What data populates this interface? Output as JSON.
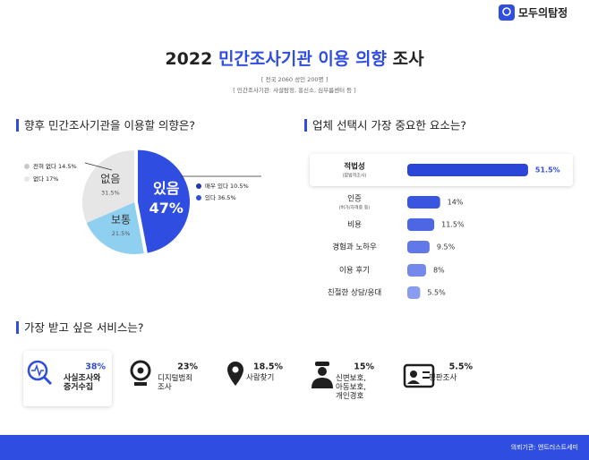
{
  "logo": "모두의탐정",
  "header": {
    "title_prefix": "2022",
    "title_highlight": "민간조사기관 이용 의향",
    "title_suffix": "조사",
    "subtitle_lines": [
      "[ 전국 2060 성인 200명 ]",
      "[ 민간조사기관: 사설탐정, 흥신소, 심부름센터 등 ]"
    ]
  },
  "chart_data": [
    {
      "type": "pie",
      "title": "향후 민간조사기관을 이용할 의향은?",
      "categories": [
        "있음",
        "보통",
        "없음"
      ],
      "values": [
        47,
        21.5,
        31.5
      ],
      "value_labels": [
        "47%",
        "21.5%",
        "31.5%"
      ],
      "colors": [
        "#2f4de0",
        "#8fd0f0",
        "#e6e6e6"
      ],
      "breakdown": [
        {
          "name": "매우 있다",
          "value": 10.5,
          "value_label": "10.5%",
          "color": "#2236b0"
        },
        {
          "name": "있다",
          "value": 36.5,
          "value_label": "36.5%",
          "color": "#2f4de0"
        },
        {
          "name": "전혀 없다",
          "value": 14.5,
          "value_label": "14.5%",
          "color": "#c8c8c8"
        },
        {
          "name": "없다",
          "value": 17,
          "value_label": "17%",
          "color": "#e6e6e6"
        }
      ]
    },
    {
      "type": "bar",
      "title": "업체 선택시 가장 중요한 요소는?",
      "categories": [
        "적법성",
        "인증",
        "비용",
        "경험과 노하우",
        "이용 후기",
        "친절한 상담/응대"
      ],
      "sublabels": [
        "(합법적조사)",
        "(허가/자격증 등)",
        null,
        null,
        null,
        null
      ],
      "values": [
        51.5,
        14,
        11.5,
        9.5,
        8,
        5.5
      ],
      "value_labels": [
        "51.5%",
        "14%",
        "11.5%",
        "9.5%",
        "8%",
        "5.5%"
      ],
      "colors": [
        "#2a46d8",
        "#3a56e0",
        "#4d66e4",
        "#6078e8",
        "#7589ec",
        "#8a9cf0"
      ]
    }
  ],
  "services": {
    "title": "가장 받고 싶은 서비스는?",
    "items": [
      {
        "label": "사실조사와 증거수집",
        "value": 38,
        "value_label": "38%"
      },
      {
        "label": "디지털범죄 조사",
        "value": 23,
        "value_label": "23%"
      },
      {
        "label": "사람찾기",
        "value": 18.5,
        "value_label": "18.5%"
      },
      {
        "label": "신변보호, 아동보호, 개인경호",
        "value": 15,
        "value_label": "15%"
      },
      {
        "label": "평판조사",
        "value": 5.5,
        "value_label": "5.5%"
      }
    ]
  },
  "footer": "의뢰기관: 엔트러스트세미"
}
